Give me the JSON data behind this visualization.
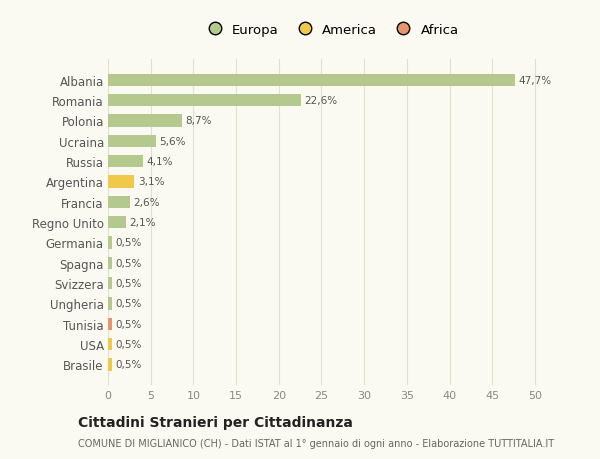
{
  "countries": [
    "Albania",
    "Romania",
    "Polonia",
    "Ucraina",
    "Russia",
    "Argentina",
    "Francia",
    "Regno Unito",
    "Germania",
    "Spagna",
    "Svizzera",
    "Ungheria",
    "Tunisia",
    "USA",
    "Brasile"
  ],
  "values": [
    47.7,
    22.6,
    8.7,
    5.6,
    4.1,
    3.1,
    2.6,
    2.1,
    0.5,
    0.5,
    0.5,
    0.5,
    0.5,
    0.5,
    0.5
  ],
  "labels": [
    "47,7%",
    "22,6%",
    "8,7%",
    "5,6%",
    "4,1%",
    "3,1%",
    "2,6%",
    "2,1%",
    "0,5%",
    "0,5%",
    "0,5%",
    "0,5%",
    "0,5%",
    "0,5%",
    "0,5%"
  ],
  "continents": [
    "Europa",
    "Europa",
    "Europa",
    "Europa",
    "Europa",
    "America",
    "Europa",
    "Europa",
    "Europa",
    "Europa",
    "Europa",
    "Europa",
    "Africa",
    "America",
    "America"
  ],
  "colors": {
    "Europa": "#b5c98e",
    "America": "#f0c84a",
    "Africa": "#e8956d"
  },
  "legend_items": [
    "Europa",
    "America",
    "Africa"
  ],
  "legend_colors": [
    "#b5c98e",
    "#f0c84a",
    "#e8956d"
  ],
  "background_color": "#fafaf2",
  "grid_color": "#e0e0d0",
  "title": "Cittadini Stranieri per Cittadinanza",
  "subtitle": "COMUNE DI MIGLIANICO (CH) - Dati ISTAT al 1° gennaio di ogni anno - Elaborazione TUTTITALIA.IT",
  "xlim": [
    0,
    52
  ],
  "xticks": [
    0,
    5,
    10,
    15,
    20,
    25,
    30,
    35,
    40,
    45,
    50
  ]
}
